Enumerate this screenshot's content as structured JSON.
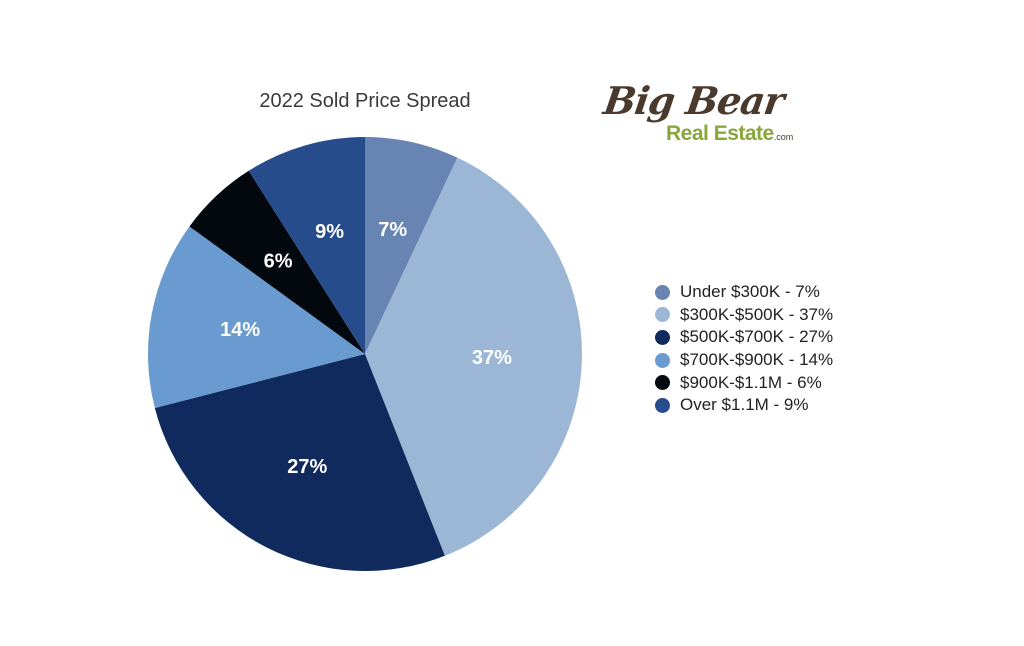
{
  "chart_data": {
    "type": "pie",
    "title": "2022 Sold Price Spread",
    "slices": [
      {
        "name": "Under $300K - 7%",
        "value": 7,
        "label": "7%",
        "color": "#6884b3"
      },
      {
        "name": "$300K-$500K - 37%",
        "value": 37,
        "label": "37%",
        "color": "#9cb7d6"
      },
      {
        "name": "$500K-$700K - 27%",
        "value": 27,
        "label": "27%",
        "color": "#102a5e"
      },
      {
        "name": "$700K-$900K - 14%",
        "value": 14,
        "label": "14%",
        "color": "#6a9bd0"
      },
      {
        "name": "$900K-$1.1M - 6%",
        "value": 6,
        "label": "6%",
        "color": "#03080f"
      },
      {
        "name": "Over $1.1M - 9%",
        "value": 9,
        "label": "9%",
        "color": "#274c8c"
      }
    ],
    "legend_position": "right",
    "start": "top, clockwise"
  },
  "logo": {
    "line1": "Big Bear",
    "line2": "Real Estate",
    "suffix": ".com",
    "colors": {
      "line1": "#4a3a2e",
      "line2": "#8aa63a"
    }
  }
}
